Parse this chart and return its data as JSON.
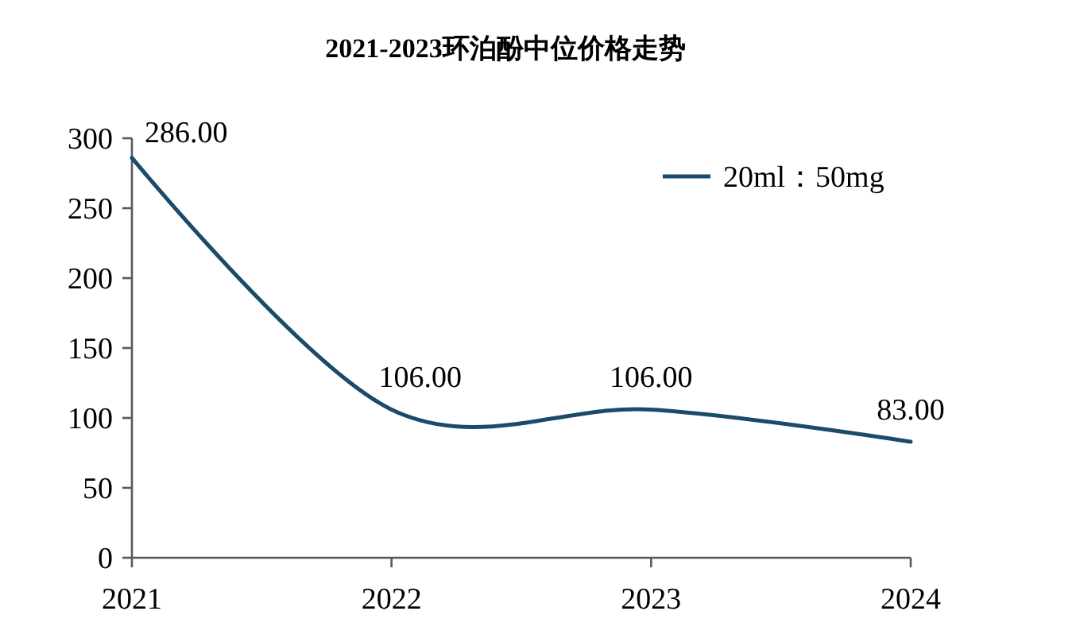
{
  "chart_data": {
    "type": "line",
    "title": "2021-2023环泊酚中位价格走势",
    "categories": [
      "2021",
      "2022",
      "2023",
      "2024"
    ],
    "series": [
      {
        "name": "20ml：50mg",
        "color": "#1b4a6b",
        "values": [
          286,
          106,
          106,
          83
        ],
        "value_labels": [
          "286.00",
          "106.00",
          "106.00",
          "83.00"
        ]
      }
    ],
    "ylim": [
      0,
      300
    ],
    "yticks": [
      0,
      50,
      100,
      150,
      200,
      250,
      300
    ],
    "grid": false,
    "legend": "top right",
    "marker": "none",
    "line_style": "solid"
  }
}
